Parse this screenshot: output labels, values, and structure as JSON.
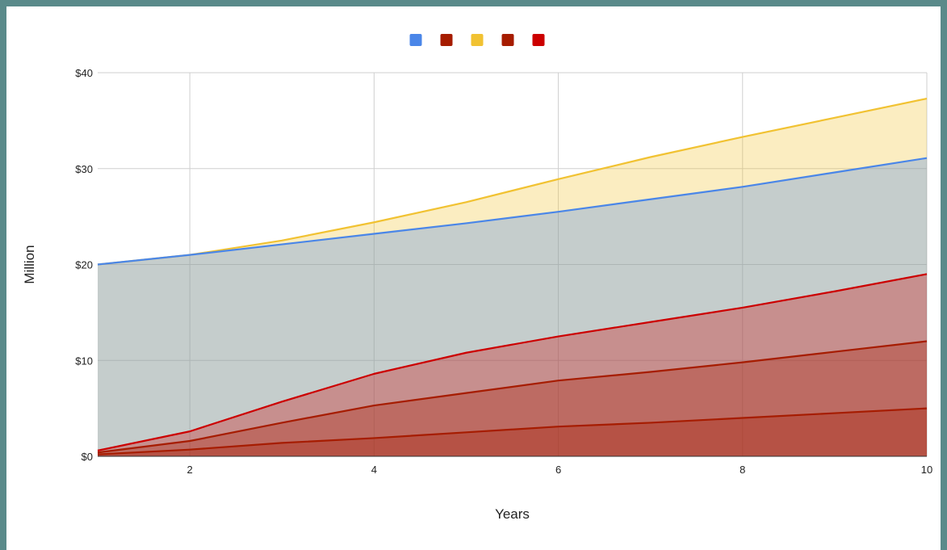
{
  "chart_data": {
    "type": "area",
    "xlabel": "Years",
    "ylabel": "Million",
    "xlim": [
      1,
      10
    ],
    "ylim": [
      0,
      40
    ],
    "x_ticks": [
      2,
      4,
      6,
      8,
      10
    ],
    "y_ticks": [
      0,
      10,
      20,
      30,
      40
    ],
    "y_tick_labels": [
      "$0",
      "$10",
      "$20",
      "$30",
      "$40"
    ],
    "grid": true,
    "legend_position": "top",
    "x": [
      1,
      2,
      3,
      4,
      5,
      6,
      7,
      8,
      9,
      10
    ],
    "series": [
      {
        "color": "#4a86e8",
        "values": [
          20,
          21,
          22.1,
          23.2,
          24.3,
          25.5,
          26.8,
          28.1,
          29.6,
          31.1
        ]
      },
      {
        "color": "#a61c00",
        "values": [
          0.2,
          0.7,
          1.4,
          1.9,
          2.5,
          3.1,
          3.5,
          4.0,
          4.5,
          5.0
        ]
      },
      {
        "color": "#f1c232",
        "values": [
          20,
          21,
          22.5,
          24.4,
          26.5,
          28.9,
          31.2,
          33.3,
          35.3,
          37.3
        ]
      },
      {
        "color": "#a61c00",
        "values": [
          0.4,
          1.6,
          3.5,
          5.3,
          6.6,
          7.9,
          8.8,
          9.8,
          10.9,
          12.0
        ]
      },
      {
        "color": "#cc0000",
        "values": [
          0.6,
          2.6,
          5.7,
          8.6,
          10.8,
          12.5,
          14.0,
          15.5,
          17.2,
          19.0
        ]
      }
    ]
  }
}
